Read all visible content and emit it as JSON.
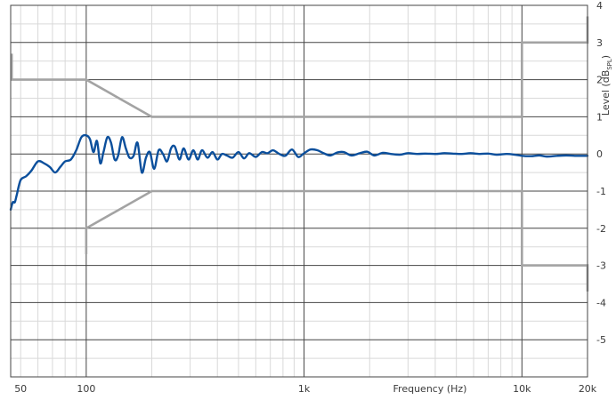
{
  "chart_data": {
    "type": "line",
    "xlabel": "Frequency (Hz)",
    "ylabel": "Level (dB",
    "ylabel_subscript": "SPL",
    "ylabel_close": ")",
    "xscale": "log",
    "xlim": [
      45,
      20000
    ],
    "ylim": [
      -6,
      4
    ],
    "grid": true,
    "x_ticks": [
      {
        "value": 50,
        "label": "50"
      },
      {
        "value": 100,
        "label": "100"
      },
      {
        "value": 1000,
        "label": "1k"
      },
      {
        "value": 10000,
        "label": "10k"
      },
      {
        "value": 20000,
        "label": "20k"
      }
    ],
    "y_ticks": [
      {
        "value": 4,
        "label": "4"
      },
      {
        "value": 3,
        "label": "3"
      },
      {
        "value": 2,
        "label": "2"
      },
      {
        "value": 1,
        "label": "1"
      },
      {
        "value": 0,
        "label": "0"
      },
      {
        "value": -1,
        "label": "-1"
      },
      {
        "value": -2,
        "label": "-2"
      },
      {
        "value": -3,
        "label": "-3"
      },
      {
        "value": -4,
        "label": "-4"
      },
      {
        "value": -5,
        "label": "-5"
      }
    ],
    "tolerance_upper": {
      "x": [
        45.5,
        45.5,
        100,
        200,
        10000,
        10000,
        20000,
        20000
      ],
      "y": [
        2.7,
        2.0,
        2.0,
        1.0,
        1.0,
        3.0,
        3.0,
        3.7
      ]
    },
    "tolerance_lower": {
      "x": [
        100,
        100,
        200,
        10000,
        10000,
        20000,
        20000
      ],
      "y": [
        -2.7,
        -2.0,
        -1.0,
        -1.0,
        -3.0,
        -3.0,
        -3.7
      ]
    },
    "series": [
      {
        "x": [
          45,
          46,
          47,
          48,
          50,
          53,
          56,
          60,
          64,
          68,
          72,
          76,
          80,
          85,
          90,
          95,
          100,
          104,
          108,
          112,
          116,
          120,
          125,
          130,
          135,
          140,
          146,
          152,
          158,
          165,
          172,
          180,
          188,
          196,
          205,
          215,
          225,
          235,
          245,
          255,
          268,
          280,
          295,
          310,
          325,
          340,
          360,
          380,
          400,
          420,
          445,
          470,
          500,
          530,
          560,
          600,
          640,
          680,
          720,
          770,
          820,
          880,
          940,
          1000,
          1070,
          1150,
          1230,
          1320,
          1420,
          1520,
          1650,
          1800,
          1950,
          2100,
          2300,
          2500,
          2750,
          3000,
          3300,
          3600,
          4000,
          4400,
          4800,
          5300,
          5800,
          6400,
          7000,
          7700,
          8500,
          9300,
          10000,
          11000,
          12000,
          13000,
          14500,
          16000,
          17500,
          19000,
          20000
        ],
        "y": [
          -1.5,
          -1.3,
          -1.3,
          -1.1,
          -0.7,
          -0.6,
          -0.45,
          -0.2,
          -0.25,
          -0.35,
          -0.5,
          -0.35,
          -0.2,
          -0.15,
          0.1,
          0.45,
          0.5,
          0.4,
          0.05,
          0.35,
          -0.25,
          0.05,
          0.45,
          0.3,
          -0.15,
          -0.05,
          0.45,
          0.15,
          -0.1,
          -0.05,
          0.3,
          -0.5,
          -0.1,
          0.05,
          -0.4,
          0.1,
          0.0,
          -0.2,
          0.15,
          0.2,
          -0.15,
          0.15,
          -0.15,
          0.1,
          -0.15,
          0.1,
          -0.1,
          0.05,
          -0.15,
          0.0,
          -0.05,
          -0.1,
          0.05,
          -0.12,
          0.02,
          -0.08,
          0.05,
          0.02,
          0.1,
          0.0,
          -0.05,
          0.12,
          -0.08,
          0.02,
          0.12,
          0.1,
          0.02,
          -0.04,
          0.04,
          0.05,
          -0.04,
          0.02,
          0.06,
          -0.04,
          0.03,
          0.0,
          -0.02,
          0.02,
          0.0,
          0.01,
          0.0,
          0.02,
          0.01,
          0.0,
          0.02,
          0.0,
          0.01,
          -0.02,
          0.0,
          -0.02,
          -0.05,
          -0.06,
          -0.04,
          -0.07,
          -0.05,
          -0.04,
          -0.05,
          -0.05,
          -0.05
        ]
      }
    ]
  },
  "colors": {
    "measurement": "#0b4f9c",
    "tolerance": "#a3a3a3",
    "grid_major": "#444444",
    "grid_minor": "#d9d9d9",
    "frame": "#444444"
  }
}
